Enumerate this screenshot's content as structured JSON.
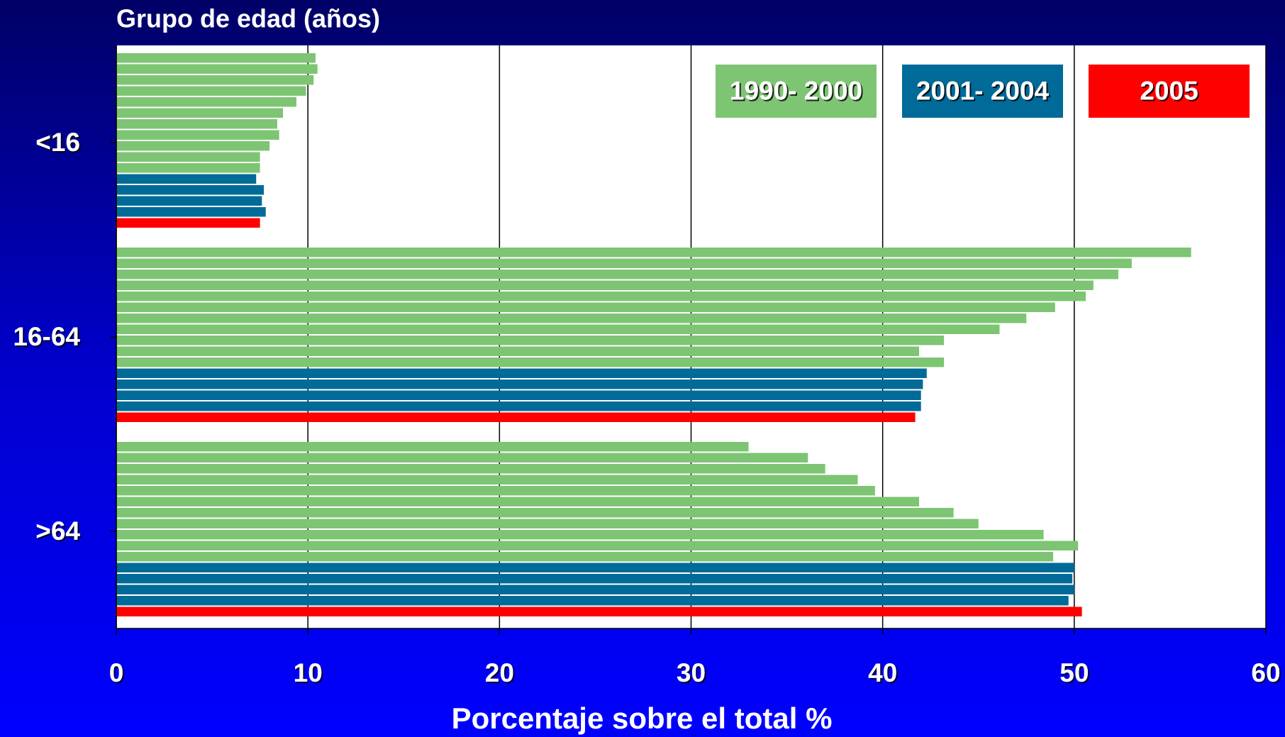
{
  "chart_data": {
    "type": "bar",
    "orientation": "horizontal",
    "title": "Grupo de edad (años)",
    "x_label": "Porcentaje sobre el total %",
    "categories": [
      "<16",
      "16-64",
      ">64"
    ],
    "series": [
      {
        "name": "1990- 2000",
        "color": "#7dc573",
        "values": [
          [
            10.4,
            10.5,
            10.3,
            9.9,
            9.4,
            8.7,
            8.4,
            8.5,
            8.0,
            7.5,
            7.5
          ],
          [
            56.1,
            53.0,
            52.3,
            51.0,
            50.6,
            49.0,
            47.5,
            46.1,
            43.2,
            41.9,
            43.2
          ],
          [
            33.0,
            36.1,
            37.0,
            38.7,
            39.6,
            41.9,
            43.7,
            45.0,
            48.4,
            50.2,
            48.9
          ]
        ]
      },
      {
        "name": "2001- 2004",
        "color": "#006a98",
        "values": [
          [
            7.3,
            7.7,
            7.6,
            7.8
          ],
          [
            42.3,
            42.1,
            42.0,
            42.0
          ],
          [
            50.0,
            49.9,
            50.0,
            49.7
          ]
        ]
      },
      {
        "name": "2005",
        "color": "#ff0000",
        "values": [
          [
            7.5
          ],
          [
            41.7
          ],
          [
            50.4
          ]
        ]
      }
    ],
    "xlim": [
      0,
      60
    ],
    "xticks": [
      0,
      10,
      20,
      30,
      40,
      50,
      60
    ],
    "grid": true,
    "legend": "upper right"
  }
}
